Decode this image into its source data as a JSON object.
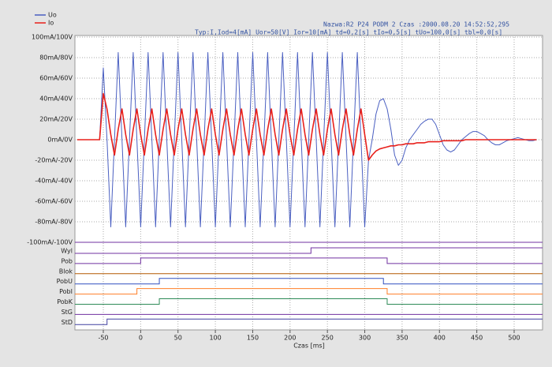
{
  "chart_data": {
    "type": "line",
    "header": "Nazwa:R2 P24 PODM 2    Czas :2000.08.20 14:52:52,295",
    "subtitle": "Typ:I,Iod=4[mA]   Uor=50[V]  Ior=10[mA]  td=0,2[s]  tIo=0,5[s]  tUo=100,0[s]  tbl=0,0[s]",
    "xlabel": "Czas [ms]",
    "xlim": [
      -88,
      538
    ],
    "ylim": [
      -100,
      100
    ],
    "xticks": [
      -50,
      0,
      50,
      100,
      150,
      200,
      250,
      300,
      350,
      400,
      450,
      500
    ],
    "yticks": [
      {
        "value": 100,
        "label": "100mA/100V"
      },
      {
        "value": 80,
        "label": "80mA/80V"
      },
      {
        "value": 60,
        "label": "60mA/60V"
      },
      {
        "value": 40,
        "label": "40mA/40V"
      },
      {
        "value": 20,
        "label": "20mA/20V"
      },
      {
        "value": 0,
        "label": "0mA/0V"
      },
      {
        "value": -20,
        "label": "-20mA/-20V"
      },
      {
        "value": -40,
        "label": "-40mA/-40V"
      },
      {
        "value": -60,
        "label": "-60mA/-60V"
      },
      {
        "value": -80,
        "label": "-80mA/-80V"
      },
      {
        "value": -100,
        "label": "-100mA/-100V"
      }
    ],
    "grid": true,
    "x": [
      -85,
      -80,
      -75,
      -70,
      -65,
      -60,
      -55,
      -50,
      -45,
      -40,
      -35,
      -30,
      -25,
      -20,
      -15,
      -10,
      -5,
      0,
      5,
      10,
      15,
      20,
      25,
      30,
      35,
      40,
      45,
      50,
      55,
      60,
      65,
      70,
      75,
      80,
      85,
      90,
      95,
      100,
      105,
      110,
      115,
      120,
      125,
      130,
      135,
      140,
      145,
      150,
      155,
      160,
      165,
      170,
      175,
      180,
      185,
      190,
      195,
      200,
      205,
      210,
      215,
      220,
      225,
      230,
      235,
      240,
      245,
      250,
      255,
      260,
      265,
      270,
      275,
      280,
      285,
      290,
      295,
      300,
      305,
      310,
      315,
      320,
      325,
      330,
      335,
      340,
      345,
      350,
      355,
      360,
      365,
      370,
      375,
      380,
      385,
      390,
      395,
      400,
      405,
      410,
      415,
      420,
      425,
      430,
      435,
      440,
      445,
      450,
      455,
      460,
      465,
      470,
      475,
      480,
      485,
      490,
      495,
      500,
      505,
      510,
      515,
      520,
      525,
      530
    ],
    "series": [
      {
        "name": "Uo",
        "color": "#4a5fc1",
        "values": [
          0,
          0,
          0,
          0,
          0,
          0,
          0,
          70,
          0,
          -85,
          0,
          85,
          0,
          -85,
          0,
          85,
          0,
          -85,
          0,
          85,
          0,
          -85,
          0,
          85,
          0,
          -85,
          0,
          85,
          0,
          -85,
          0,
          85,
          0,
          -85,
          0,
          85,
          0,
          -85,
          0,
          85,
          0,
          -85,
          0,
          85,
          0,
          -85,
          0,
          85,
          0,
          -85,
          0,
          85,
          0,
          -85,
          0,
          85,
          0,
          -85,
          0,
          85,
          0,
          -85,
          0,
          85,
          0,
          -85,
          0,
          85,
          0,
          -85,
          0,
          85,
          0,
          -85,
          0,
          85,
          0,
          -85,
          -20,
          0,
          25,
          38,
          40,
          30,
          10,
          -15,
          -25,
          -20,
          -8,
          0,
          5,
          10,
          15,
          18,
          20,
          20,
          15,
          5,
          -5,
          -10,
          -12,
          -10,
          -5,
          0,
          3,
          6,
          8,
          8,
          6,
          4,
          0,
          -3,
          -5,
          -5,
          -3,
          -1,
          0,
          1,
          2,
          1,
          0,
          -1,
          -1,
          0
        ]
      },
      {
        "name": "Io",
        "color": "#e8201b",
        "values": [
          0,
          0,
          0,
          0,
          0,
          0,
          0,
          45,
          30,
          5,
          -15,
          10,
          30,
          5,
          -15,
          10,
          30,
          5,
          -15,
          10,
          30,
          5,
          -15,
          10,
          30,
          5,
          -15,
          10,
          30,
          5,
          -15,
          10,
          30,
          5,
          -15,
          10,
          30,
          5,
          -15,
          10,
          30,
          5,
          -15,
          10,
          30,
          5,
          -15,
          10,
          30,
          5,
          -15,
          10,
          30,
          5,
          -15,
          10,
          30,
          5,
          -15,
          10,
          30,
          5,
          -15,
          10,
          30,
          5,
          -15,
          10,
          30,
          5,
          -15,
          10,
          30,
          5,
          -15,
          10,
          30,
          5,
          -20,
          -15,
          -11,
          -9,
          -8,
          -7,
          -6,
          -6,
          -5,
          -5,
          -4,
          -4,
          -4,
          -3,
          -3,
          -3,
          -2,
          -2,
          -2,
          -2,
          -1,
          -1,
          -1,
          -1,
          -1,
          -1,
          0,
          0,
          0,
          0,
          0,
          0,
          0,
          0,
          0,
          0,
          0,
          0,
          0,
          0,
          0,
          0,
          0,
          0,
          0,
          0
        ]
      }
    ],
    "signals": [
      {
        "name": "Wyl",
        "color": "#7030a0",
        "high": [
          228,
          null
        ]
      },
      {
        "name": "Pob",
        "color": "#7030a0",
        "high": [
          0,
          330
        ]
      },
      {
        "name": "Blok",
        "color": "#b35900",
        "high": null
      },
      {
        "name": "PobU",
        "color": "#3050c0",
        "high": [
          25,
          325
        ]
      },
      {
        "name": "PobI",
        "color": "#ff7f27",
        "high": [
          -5,
          330
        ]
      },
      {
        "name": "PobK",
        "color": "#2e8b57",
        "high": [
          25,
          330
        ]
      },
      {
        "name": "StG",
        "color": "#7030a0",
        "high": null
      },
      {
        "name": "StD",
        "color": "#4040a0",
        "high": [
          -45,
          null
        ]
      }
    ]
  }
}
